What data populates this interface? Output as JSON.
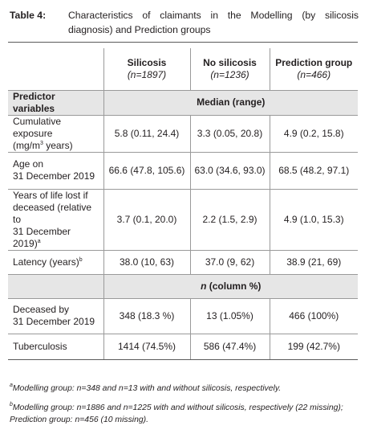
{
  "caption": {
    "label": "Table 4:",
    "text": "Characteristics of claimants in the Modelling (by silicosis diagnosis) and Prediction groups"
  },
  "columns": [
    {
      "title": "Silicosis",
      "n": "(n=1897)"
    },
    {
      "title": "No silicosis",
      "n": "(n=1236)"
    },
    {
      "title": "Prediction group",
      "n": "(n=466)"
    }
  ],
  "section_median": {
    "predictor_label": "Predictor variables",
    "header": "Median (range)"
  },
  "rows_median": [
    {
      "label_lines": [
        "Cumulative exposure",
        "(mg/m",
        "3",
        " years)"
      ],
      "values": [
        "5.8 (0.11, 24.4)",
        "3.3 (0.05, 20.8)",
        "4.9 (0.2, 15.8)"
      ]
    },
    {
      "label_lines": [
        "Age on",
        "31 December 2019"
      ],
      "values": [
        "66.6 (47.8, 105.6)",
        "63.0 (34.6, 93.0)",
        "68.5 (48.2, 97.1)"
      ]
    },
    {
      "label_lines": [
        "Years of life lost if",
        "deceased (relative to",
        "31 December 2019)",
        "a"
      ],
      "values": [
        "3.7 (0.1, 20.0)",
        "2.2 (1.5, 2.9)",
        "4.9 (1.0, 15.3)"
      ]
    },
    {
      "label_lines": [
        "Latency (years)",
        "b"
      ],
      "values": [
        "38.0 (10, 63)",
        "37.0 (9, 62)",
        "38.9 (21, 69)"
      ]
    }
  ],
  "section_count": {
    "header_n": "n",
    "header_rest": " (column %)"
  },
  "rows_count": [
    {
      "label_lines": [
        "Deceased by",
        "31 December 2019"
      ],
      "values": [
        "348 (18.3 %)",
        "13 (1.05%)",
        "466 (100%)"
      ]
    },
    {
      "label_lines": [
        "Tuberculosis"
      ],
      "values": [
        "1414 (74.5%)",
        "586 (47.4%)",
        "199 (42.7%)"
      ]
    }
  ],
  "footnotes": [
    {
      "mark": "a",
      "text": "Modelling group: n=348 and n=13 with and without silicosis, respectively."
    },
    {
      "mark": "b",
      "text": "Modelling group: n=1886 and n=1225 with and without silicosis, respectively (22 missing); Prediction group: n=456 (10 missing)."
    }
  ]
}
